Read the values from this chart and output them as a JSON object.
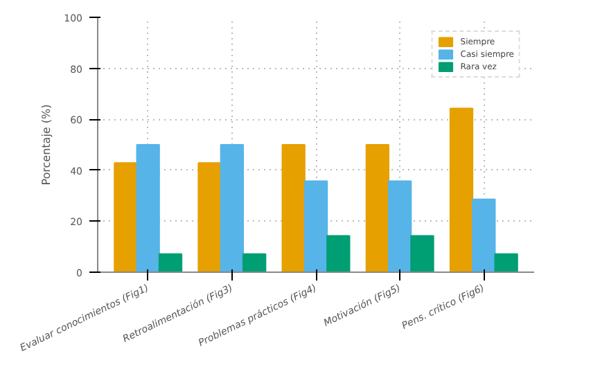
{
  "chart_data": {
    "type": "bar",
    "ylabel": "Porcentaje (%)",
    "categories": [
      "Evaluar conocimientos (Fig1)",
      "Retroalimentación (Fig3)",
      "Problemas prácticos (Fig4)",
      "Motivación (Fig5)",
      "Pens. crítico (Fig6)"
    ],
    "series": [
      {
        "name": "Siempre",
        "color": "#e6a000",
        "values": [
          42.9,
          42.9,
          50,
          50,
          64.3
        ]
      },
      {
        "name": "Casi siempre",
        "color": "#56b4e9",
        "values": [
          50,
          50,
          35.7,
          35.7,
          28.6
        ]
      },
      {
        "name": "Rara vez",
        "color": "#009e73",
        "values": [
          7.1,
          7.1,
          14.3,
          14.3,
          7.1
        ]
      }
    ],
    "ylim": [
      0,
      100
    ],
    "yticks": [
      0,
      20,
      40,
      60,
      80,
      100
    ],
    "grid": true,
    "legend": "top right"
  }
}
